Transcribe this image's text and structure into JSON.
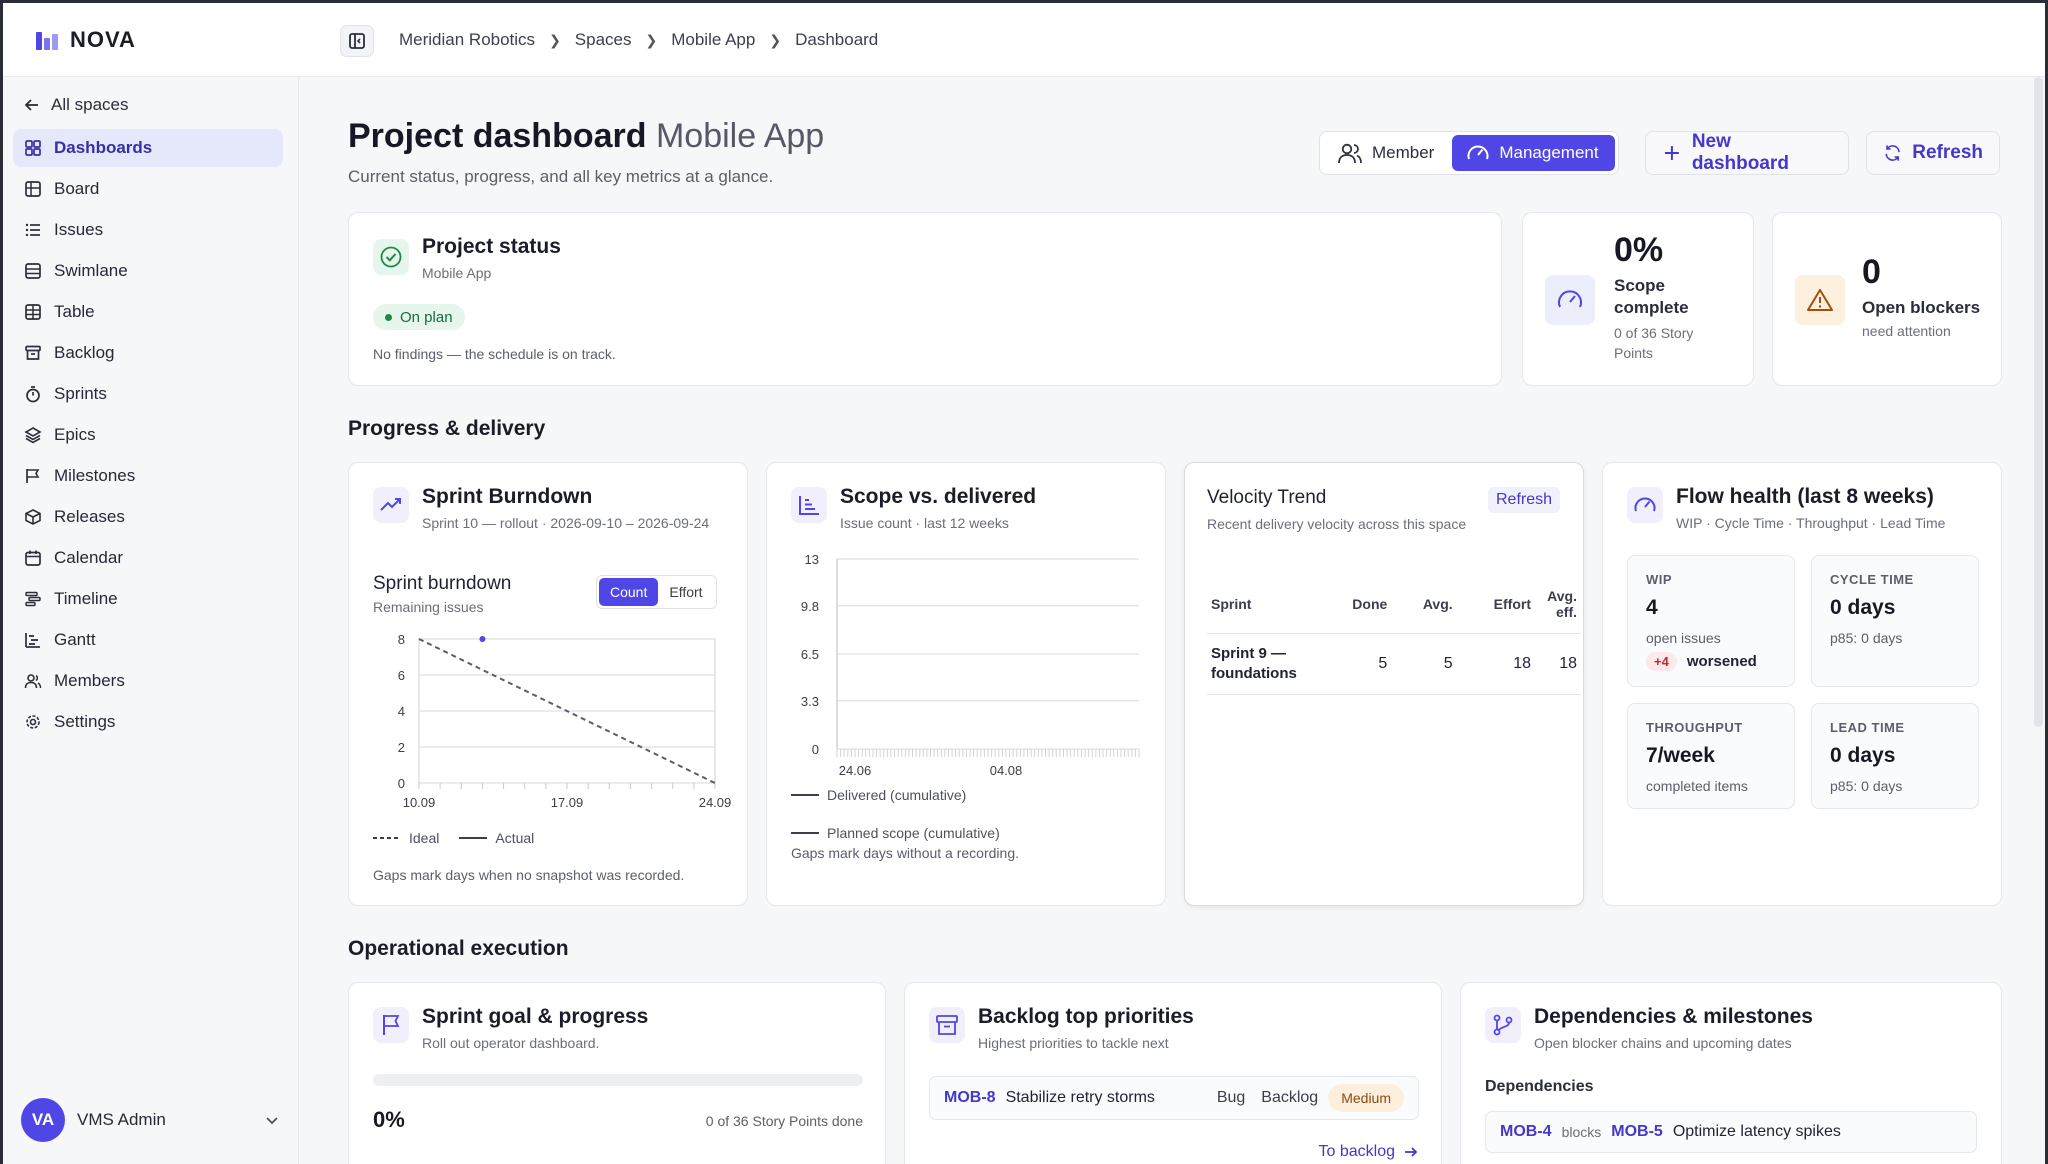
{
  "app": {
    "name": "NOVA"
  },
  "breadcrumb": [
    "Meridian Robotics",
    "Spaces",
    "Mobile App",
    "Dashboard"
  ],
  "sidebar": {
    "back_label": "All spaces",
    "items": [
      {
        "label": "Dashboards",
        "icon": "dashboard-icon",
        "active": true
      },
      {
        "label": "Board",
        "icon": "board-icon"
      },
      {
        "label": "Issues",
        "icon": "list-icon"
      },
      {
        "label": "Swimlane",
        "icon": "swimlane-icon"
      },
      {
        "label": "Table",
        "icon": "table-icon"
      },
      {
        "label": "Backlog",
        "icon": "archive-icon"
      },
      {
        "label": "Sprints",
        "icon": "timer-icon"
      },
      {
        "label": "Epics",
        "icon": "layers-icon"
      },
      {
        "label": "Milestones",
        "icon": "flag-icon"
      },
      {
        "label": "Releases",
        "icon": "package-icon"
      },
      {
        "label": "Calendar",
        "icon": "calendar-icon"
      },
      {
        "label": "Timeline",
        "icon": "timeline-icon"
      },
      {
        "label": "Gantt",
        "icon": "gantt-icon"
      },
      {
        "label": "Members",
        "icon": "users-icon"
      },
      {
        "label": "Settings",
        "icon": "gear-icon"
      }
    ],
    "user": {
      "initials": "VA",
      "name": "VMS Admin"
    }
  },
  "header": {
    "title": "Project dashboard",
    "title_space": "Mobile App",
    "description": "Current status, progress, and all key metrics at a glance.",
    "view_member": "Member",
    "view_management": "Management",
    "new_dashboard": "New dashboard",
    "refresh": "Refresh"
  },
  "status": {
    "title": "Project status",
    "subtitle": "Mobile App",
    "badge": "On plan",
    "note": "No findings — the schedule is on track."
  },
  "kpi_scope": {
    "value": "0%",
    "label": "Scope complete",
    "note": "0 of 36 Story Points"
  },
  "kpi_blockers": {
    "value": "0",
    "label": "Open blockers",
    "note": "need attention"
  },
  "sections": {
    "progress": "Progress & delivery",
    "operational": "Operational execution"
  },
  "burndown": {
    "title": "Sprint Burndown",
    "subtitle": "Sprint 10 — rollout · 2026-09-10 – 2026-09-24",
    "chart_title": "Sprint burndown",
    "chart_sub": "Remaining issues",
    "toggle_count": "Count",
    "toggle_effort": "Effort",
    "legend_ideal": "Ideal",
    "legend_actual": "Actual",
    "footnote": "Gaps mark days when no snapshot was recorded."
  },
  "scope": {
    "title": "Scope vs. delivered",
    "subtitle": "Issue count · last 12 weeks",
    "legend_delivered": "Delivered (cumulative)",
    "legend_planned": "Planned scope (cumulative)",
    "footnote": "Gaps mark days without a recording."
  },
  "velocity": {
    "title": "Velocity Trend",
    "refresh": "Refresh",
    "subtitle": "Recent delivery velocity across this space",
    "columns": [
      "Sprint",
      "Done",
      "Avg.",
      "Effort",
      "Avg. eff."
    ],
    "rows": [
      {
        "sprint": "Sprint 9 — foundations",
        "done": "5",
        "avg": "5",
        "effort": "18",
        "avg_eff": "18"
      }
    ]
  },
  "flow": {
    "title": "Flow health (last 8 weeks)",
    "subtitle": "WIP · Cycle Time · Throughput · Lead Time",
    "wip": {
      "label": "WIP",
      "value": "4",
      "note": "open issues",
      "delta": "+4",
      "delta_label": "worsened"
    },
    "cycle": {
      "label": "CYCLE TIME",
      "value": "0 days",
      "note": "p85: 0 days"
    },
    "throughput": {
      "label": "THROUGHPUT",
      "value": "7/week",
      "note": "completed items"
    },
    "lead": {
      "label": "LEAD TIME",
      "value": "0 days",
      "note": "p85: 0 days"
    }
  },
  "sprint_goal": {
    "title": "Sprint goal & progress",
    "subtitle": "Roll out operator dashboard.",
    "progress": 0,
    "percent": "0%",
    "done_note": "0 of 36 Story Points done"
  },
  "backlog": {
    "title": "Backlog top priorities",
    "subtitle": "Highest priorities to tackle next",
    "items": [
      {
        "key": "MOB-8",
        "title": "Stabilize retry storms",
        "type": "Bug",
        "status": "Backlog",
        "priority": "Medium"
      }
    ],
    "link": "To backlog"
  },
  "deps": {
    "title": "Dependencies & milestones",
    "subtitle": "Open blocker chains and upcoming dates",
    "section": "Dependencies",
    "items": [
      {
        "from": "MOB-4",
        "rel": "blocks",
        "to": "MOB-5",
        "title": "Optimize latency spikes"
      }
    ]
  },
  "colors": {
    "accent": "#4f46e5",
    "success": "#1d8a48",
    "warning": "#c2410c",
    "danger": "#c2283a"
  },
  "chart_data": [
    {
      "type": "line",
      "title": "Sprint burndown",
      "ylabel": "Remaining issues",
      "x_ticks": [
        "10.09",
        "17.09",
        "24.09"
      ],
      "y_ticks": [
        "8",
        "6",
        "4",
        "2",
        "0"
      ],
      "ylim": [
        0,
        8
      ],
      "series": [
        {
          "name": "Ideal",
          "style": "dashed",
          "x": [
            "10.09",
            "24.09"
          ],
          "values": [
            8,
            0
          ]
        },
        {
          "name": "Actual",
          "style": "solid",
          "x": [
            "13.09"
          ],
          "values": [
            8
          ]
        }
      ],
      "grid": true,
      "legend": "bottom-left"
    },
    {
      "type": "line",
      "title": "Scope vs. delivered",
      "x_ticks": [
        "24.06",
        "04.08"
      ],
      "y_ticks": [
        "13",
        "9.8",
        "6.5",
        "3.3",
        "0"
      ],
      "ylim": [
        0,
        13
      ],
      "series": [
        {
          "name": "Delivered (cumulative)",
          "values": []
        },
        {
          "name": "Planned scope (cumulative)",
          "values": []
        }
      ],
      "grid": true,
      "legend": "bottom"
    }
  ]
}
